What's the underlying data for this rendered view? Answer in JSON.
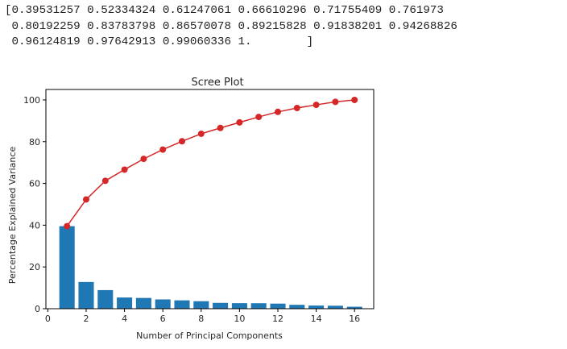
{
  "console": {
    "lines": [
      "[0.39531257 0.52334324 0.61247061 0.66610296 0.71755409 0.761973",
      " 0.80192259 0.83783798 0.86570078 0.89215828 0.91838201 0.94268826",
      " 0.96124819 0.97642913 0.99060336 1.        ]"
    ]
  },
  "chart_data": {
    "type": "bar",
    "title": "Scree Plot",
    "xlabel": "Number of Principal Components",
    "ylabel": "Percentage Explained Variance",
    "xlim": [
      -0.1,
      17.0
    ],
    "ylim": [
      0,
      105
    ],
    "xticks": [
      0,
      2,
      4,
      6,
      8,
      10,
      12,
      14,
      16
    ],
    "yticks": [
      0,
      20,
      40,
      60,
      80,
      100
    ],
    "x": [
      1,
      2,
      3,
      4,
      5,
      6,
      7,
      8,
      9,
      10,
      11,
      12,
      13,
      14,
      15,
      16
    ],
    "series": [
      {
        "type": "bar",
        "color": "#1f77b4",
        "values": [
          39.53,
          12.8,
          8.91,
          5.36,
          5.15,
          4.44,
          4.0,
          3.59,
          2.79,
          2.65,
          2.62,
          2.43,
          1.86,
          1.52,
          1.42,
          0.94
        ]
      },
      {
        "type": "line",
        "color": "#d62728",
        "marker": "circle",
        "values": [
          39.53,
          52.33,
          61.25,
          66.61,
          71.76,
          76.2,
          80.19,
          83.78,
          86.57,
          89.22,
          91.84,
          94.27,
          96.12,
          97.64,
          99.06,
          100.0
        ]
      }
    ],
    "grid": false
  }
}
